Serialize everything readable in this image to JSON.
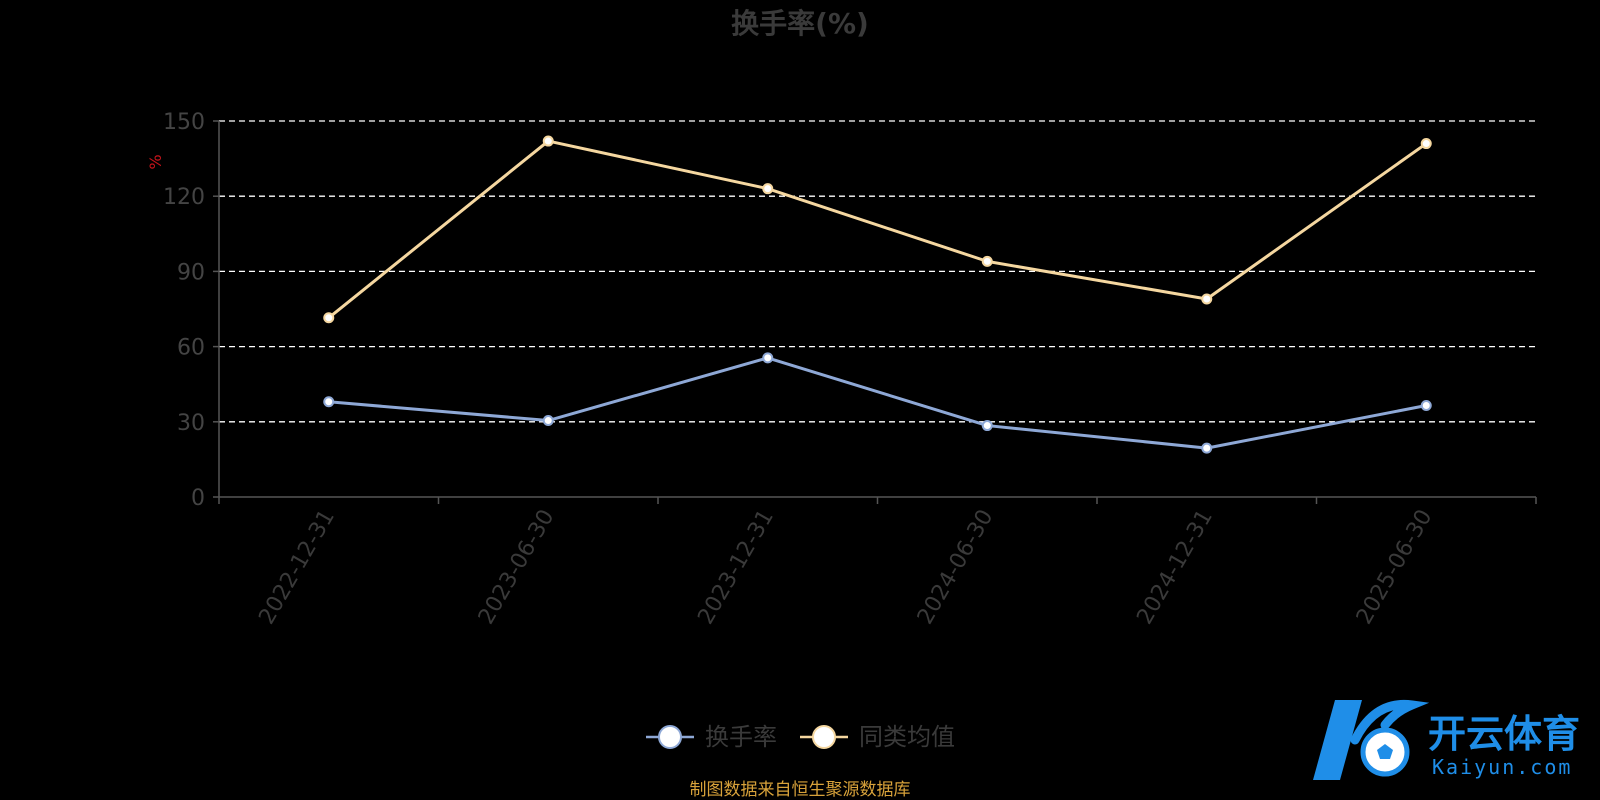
{
  "chart_data": {
    "type": "line",
    "title": "换手率(%)",
    "ylabel": "%",
    "categories": [
      "2022-12-31",
      "2023-06-30",
      "2023-12-31",
      "2024-06-30",
      "2024-12-31",
      "2025-06-30"
    ],
    "series": [
      {
        "name": "换手率",
        "values": [
          38,
          30.5,
          55.5,
          28.5,
          19.5,
          36.5
        ],
        "color": "#8ea8d6"
      },
      {
        "name": "同类均值",
        "values": [
          71.5,
          142,
          123,
          94,
          79,
          141
        ],
        "color": "#f5d7a0"
      }
    ],
    "ylim": [
      0,
      150
    ],
    "yticks": [
      0,
      30,
      60,
      90,
      120,
      150
    ],
    "grid": true,
    "legend_position": "bottom",
    "source": "制图数据来自恒生聚源数据库"
  },
  "watermark": {
    "text_cn": "开云体育",
    "text_en": "Kaiyun.com",
    "logo_letter": "K",
    "icon": "soccer-ball-icon",
    "color": "#1f8ee8"
  }
}
